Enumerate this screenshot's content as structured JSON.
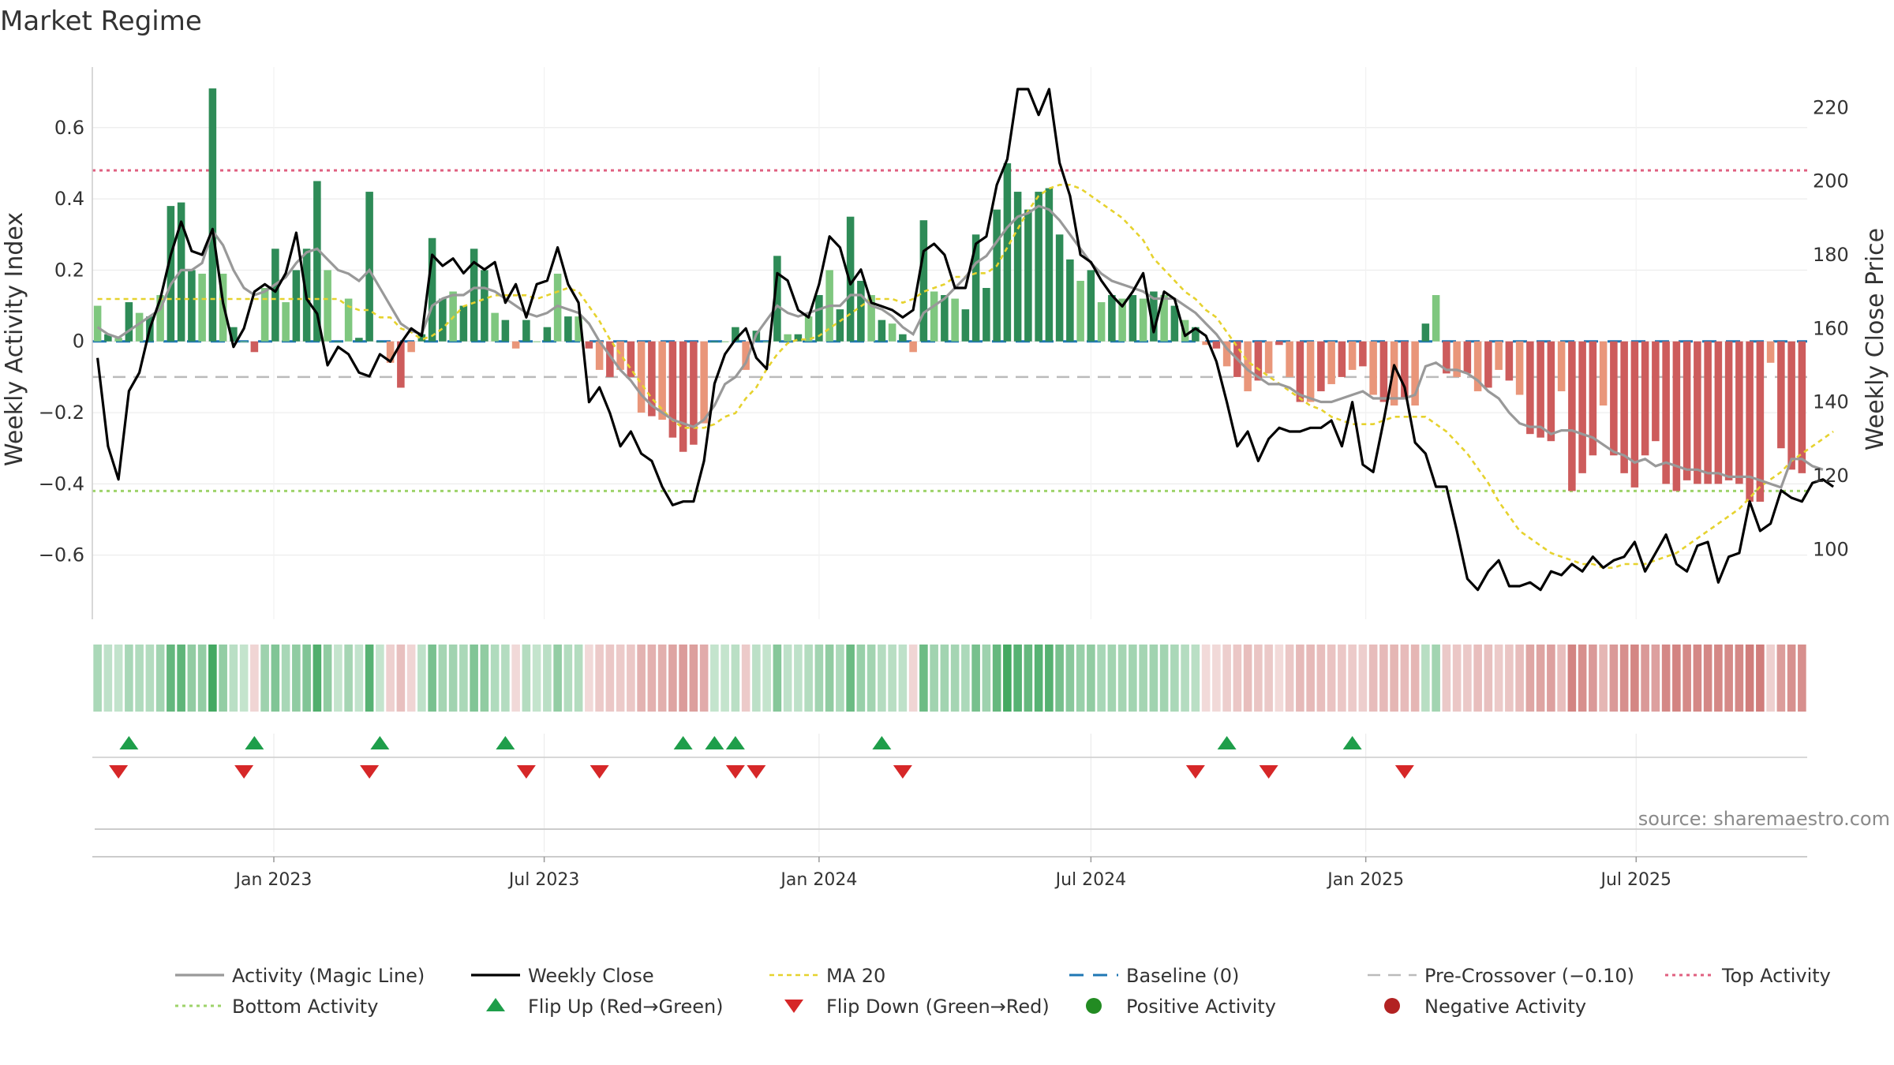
{
  "title": "Market Regime",
  "source": "source: sharemaestro.com",
  "colors": {
    "pos_dark": "#2e8b57",
    "pos_light": "#7fc77f",
    "neg_dark": "#cd5c5c",
    "neg_light": "#e9967a",
    "close": "#000000",
    "magic": "#999999",
    "ma20": "#e6d22e",
    "baseline": "#1f77b4",
    "precross": "#bbbbbb",
    "top": "#e06080",
    "bottom": "#9ed36a",
    "flip_up": "#1e9e4a",
    "flip_down": "#d62728",
    "pos_dot": "#228b22",
    "neg_dot": "#b22222"
  },
  "chart_data": {
    "type": "bar",
    "xlabel": "",
    "ylabel": "Weekly Activity Index",
    "ylabel_right": "Weekly Close Price",
    "yticks": [
      "0.6",
      "0.4",
      "0.2",
      "0",
      "−0.2",
      "−0.4",
      "−0.6"
    ],
    "yticks_right": [
      "220",
      "200",
      "180",
      "160",
      "140",
      "120",
      "100"
    ],
    "xticks": [
      "Jan 2023",
      "Jul 2023",
      "Jan 2024",
      "Jul 2024",
      "Jan 2025",
      "Jul 2025"
    ],
    "ylim": [
      -0.78,
      0.77
    ],
    "ylim_right": [
      81,
      231
    ],
    "x_start": "2022-09-05",
    "x_step_days": 7,
    "top_activity": 0.48,
    "bottom_activity": -0.42,
    "pre_crossover": -0.1,
    "activity": [
      0.1,
      0.02,
      0.01,
      0.11,
      0.08,
      0.07,
      0.13,
      0.38,
      0.39,
      0.2,
      0.19,
      0.71,
      0.19,
      0.04,
      0.0,
      -0.03,
      0.15,
      0.26,
      0.11,
      0.2,
      0.26,
      0.45,
      0.2,
      0.0,
      0.12,
      0.01,
      0.42,
      0.0,
      -0.06,
      -0.13,
      -0.03,
      0.02,
      0.29,
      0.12,
      0.14,
      0.1,
      0.26,
      0.2,
      0.08,
      0.06,
      -0.02,
      0.06,
      0.0,
      0.04,
      0.19,
      0.07,
      0.07,
      -0.02,
      -0.08,
      -0.1,
      -0.08,
      -0.1,
      -0.2,
      -0.21,
      -0.22,
      -0.27,
      -0.31,
      -0.29,
      -0.23,
      0.0,
      0.0,
      0.04,
      -0.08,
      0.03,
      0.0,
      0.24,
      0.02,
      0.02,
      0.07,
      0.13,
      0.2,
      0.09,
      0.35,
      0.17,
      0.13,
      0.06,
      0.05,
      0.02,
      -0.03,
      0.34,
      0.14,
      0.13,
      0.12,
      0.09,
      0.3,
      0.15,
      0.37,
      0.5,
      0.42,
      0.37,
      0.42,
      0.43,
      0.3,
      0.23,
      0.17,
      0.2,
      0.11,
      0.13,
      0.12,
      0.13,
      0.12,
      0.14,
      0.13,
      0.1,
      0.06,
      0.04,
      -0.01,
      -0.02,
      -0.07,
      -0.1,
      -0.14,
      -0.11,
      -0.09,
      -0.01,
      -0.1,
      -0.17,
      -0.17,
      -0.14,
      -0.12,
      -0.1,
      -0.08,
      -0.07,
      -0.15,
      -0.17,
      -0.18,
      -0.16,
      -0.18,
      0.05,
      0.13,
      -0.09,
      -0.1,
      -0.09,
      -0.14,
      -0.13,
      -0.08,
      -0.11,
      -0.15,
      -0.26,
      -0.27,
      -0.28,
      -0.14,
      -0.42,
      -0.37,
      -0.32,
      -0.18,
      -0.32,
      -0.37,
      -0.41,
      -0.32,
      -0.28,
      -0.4,
      -0.42,
      -0.39,
      -0.4,
      -0.4,
      -0.4,
      -0.39,
      -0.4,
      -0.45,
      -0.45,
      -0.06,
      -0.3,
      -0.36,
      -0.37
    ],
    "magic_line": [
      0.04,
      0.02,
      0.01,
      0.03,
      0.05,
      0.07,
      0.09,
      0.16,
      0.2,
      0.2,
      0.22,
      0.31,
      0.27,
      0.2,
      0.15,
      0.13,
      0.14,
      0.16,
      0.18,
      0.22,
      0.25,
      0.26,
      0.23,
      0.2,
      0.19,
      0.17,
      0.2,
      0.15,
      0.1,
      0.05,
      0.03,
      0.02,
      0.1,
      0.12,
      0.13,
      0.13,
      0.15,
      0.15,
      0.14,
      0.12,
      0.1,
      0.08,
      0.07,
      0.08,
      0.1,
      0.09,
      0.08,
      0.05,
      0.0,
      -0.04,
      -0.08,
      -0.11,
      -0.15,
      -0.18,
      -0.2,
      -0.22,
      -0.23,
      -0.24,
      -0.22,
      -0.18,
      -0.12,
      -0.1,
      -0.06,
      0.02,
      0.06,
      0.1,
      0.08,
      0.07,
      0.08,
      0.09,
      0.1,
      0.1,
      0.13,
      0.13,
      0.1,
      0.09,
      0.07,
      0.04,
      0.02,
      0.08,
      0.1,
      0.12,
      0.15,
      0.18,
      0.22,
      0.24,
      0.28,
      0.32,
      0.35,
      0.36,
      0.38,
      0.37,
      0.34,
      0.3,
      0.26,
      0.22,
      0.19,
      0.17,
      0.16,
      0.15,
      0.14,
      0.12,
      0.12,
      0.12,
      0.1,
      0.08,
      0.05,
      0.02,
      -0.02,
      -0.05,
      -0.08,
      -0.1,
      -0.12,
      -0.12,
      -0.13,
      -0.15,
      -0.16,
      -0.17,
      -0.17,
      -0.16,
      -0.15,
      -0.14,
      -0.16,
      -0.16,
      -0.16,
      -0.16,
      -0.15,
      -0.07,
      -0.06,
      -0.08,
      -0.08,
      -0.09,
      -0.11,
      -0.14,
      -0.16,
      -0.2,
      -0.23,
      -0.24,
      -0.24,
      -0.26,
      -0.25,
      -0.25,
      -0.26,
      -0.27,
      -0.29,
      -0.31,
      -0.32,
      -0.34,
      -0.33,
      -0.35,
      -0.34,
      -0.35,
      -0.36,
      -0.36,
      -0.37,
      -0.37,
      -0.38,
      -0.38,
      -0.38,
      -0.39,
      -0.4,
      -0.41,
      -0.33,
      -0.33,
      -0.35,
      -0.36
    ],
    "weekly_close": [
      152,
      128,
      119,
      143,
      148,
      160,
      168,
      180,
      189,
      181,
      180,
      187,
      167,
      155,
      160,
      170,
      172,
      170,
      175,
      186,
      168,
      164,
      150,
      155,
      153,
      148,
      147,
      153,
      151,
      156,
      160,
      158,
      180,
      177,
      179,
      175,
      178,
      176,
      178,
      167,
      172,
      163,
      172,
      173,
      182,
      172,
      167,
      140,
      144,
      137,
      128,
      132,
      126,
      124,
      117,
      112,
      113,
      113,
      124,
      145,
      153,
      157,
      160,
      152,
      149,
      175,
      173,
      165,
      163,
      172,
      185,
      182,
      172,
      176,
      167,
      166,
      165,
      163,
      165,
      181,
      183,
      180,
      171,
      171,
      183,
      185,
      199,
      206,
      225,
      225,
      218,
      225,
      205,
      196,
      180,
      178,
      173,
      169,
      166,
      170,
      175,
      159,
      170,
      168,
      158,
      160,
      158,
      151,
      140,
      128,
      132,
      124,
      130,
      133,
      132,
      132,
      133,
      133,
      135,
      128,
      140,
      123,
      121,
      135,
      150,
      144,
      129,
      126,
      117,
      117,
      105,
      92,
      89,
      94,
      97,
      90,
      90,
      91,
      89,
      94,
      93,
      96,
      94,
      98,
      95,
      97,
      98,
      102,
      94,
      99,
      104,
      96,
      94,
      101,
      102,
      91,
      98,
      99,
      113,
      105,
      107,
      116,
      114,
      113,
      118,
      119,
      117
    ],
    "ma20": [
      168,
      168,
      168,
      168,
      168,
      168,
      168,
      168,
      168,
      168,
      168,
      168,
      168,
      168,
      168,
      168,
      168,
      168,
      168,
      168,
      168,
      168,
      168,
      168,
      166,
      165,
      165,
      163,
      163,
      160,
      159,
      157,
      158,
      160,
      163,
      166,
      167,
      168,
      169,
      169,
      169,
      169,
      168,
      169,
      170,
      171,
      170,
      166,
      162,
      157,
      153,
      149,
      145,
      141,
      138,
      135,
      133,
      133,
      133,
      134,
      136,
      137,
      141,
      144,
      149,
      153,
      156,
      157,
      157,
      158,
      160,
      162,
      164,
      166,
      168,
      168,
      168,
      167,
      168,
      170,
      171,
      172,
      174,
      174,
      175,
      175,
      177,
      182,
      187,
      192,
      196,
      198,
      199,
      199,
      198,
      196,
      194,
      192,
      190,
      187,
      184,
      179,
      176,
      173,
      170,
      168,
      165,
      163,
      159,
      155,
      151,
      149,
      147,
      145,
      143,
      141,
      139,
      138,
      136,
      135,
      134,
      134,
      134,
      135,
      136,
      136,
      136,
      136,
      134,
      132,
      129,
      126,
      122,
      118,
      113,
      109,
      105,
      103,
      101,
      99,
      98,
      97,
      96,
      96,
      95,
      95,
      96,
      96,
      96,
      97,
      98,
      99,
      101,
      103,
      105,
      107,
      109,
      111,
      114,
      117,
      119,
      121,
      124,
      126,
      128,
      130,
      132
    ],
    "flip_up_weeks": [
      3,
      15,
      27,
      39,
      56,
      59,
      61,
      75,
      108,
      120
    ],
    "flip_down_weeks": [
      2,
      14,
      26,
      41,
      48,
      61,
      63,
      77,
      105,
      112,
      125
    ],
    "series": [
      {
        "name": "Activity (Magic Line)"
      },
      {
        "name": "Weekly Close"
      },
      {
        "name": "MA 20"
      },
      {
        "name": "Baseline (0)"
      },
      {
        "name": "Pre-Crossover (−0.10)"
      },
      {
        "name": "Top Activity"
      },
      {
        "name": "Bottom Activity"
      },
      {
        "name": "Flip Up (Red→Green)"
      },
      {
        "name": "Flip Down (Green→Red)"
      },
      {
        "name": "Positive Activity"
      },
      {
        "name": "Negative Activity"
      }
    ]
  },
  "legend": {
    "items": [
      "Activity (Magic Line)",
      "Weekly Close",
      "MA 20",
      "Baseline (0)",
      "Pre-Crossover (−0.10)",
      "Top Activity",
      "Bottom Activity",
      "Flip Up (Red→Green)",
      "Flip Down (Green→Red)",
      "Positive Activity",
      "Negative Activity"
    ]
  }
}
